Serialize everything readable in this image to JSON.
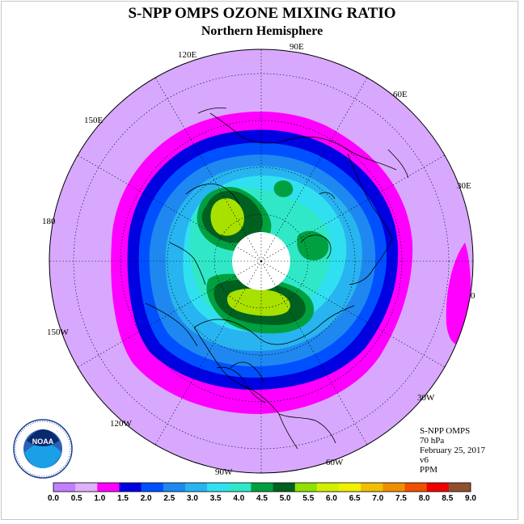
{
  "title": "S-NPP OMPS OZONE MIXING RATIO",
  "subtitle": "Northern Hemisphere",
  "longitude_labels": [
    "90E",
    "60E",
    "30E",
    "0",
    "30W",
    "60W",
    "90W",
    "120W",
    "150W",
    "180",
    "150E",
    "120E"
  ],
  "info": {
    "instrument": "S-NPP OMPS",
    "level": "70 hPa",
    "date": "February 25, 2017",
    "version": "v6",
    "units": "PPM"
  },
  "logo_text": "NOAA",
  "logo_ring_text": "NATIONAL OCEANIC AND ATMOSPHERIC ADMINISTRATION · U.S. DEPARTMENT OF COMMERCE",
  "colorbar": {
    "ticks": [
      "0.0",
      "0.5",
      "1.0",
      "1.5",
      "2.0",
      "2.5",
      "3.0",
      "3.5",
      "4.0",
      "4.5",
      "5.0",
      "5.5",
      "6.0",
      "6.5",
      "7.0",
      "7.5",
      "8.0",
      "8.5",
      "9.0"
    ],
    "colors": [
      "#c080ff",
      "#e0b0f8",
      "#ff00ff",
      "#0000e0",
      "#0050ff",
      "#1e88f0",
      "#28b4f0",
      "#30e0f0",
      "#30e8c8",
      "#00a040",
      "#006020",
      "#90e000",
      "#d0f000",
      "#f0f000",
      "#f0c000",
      "#f09000",
      "#f05000",
      "#f00000",
      "#905030"
    ]
  }
}
